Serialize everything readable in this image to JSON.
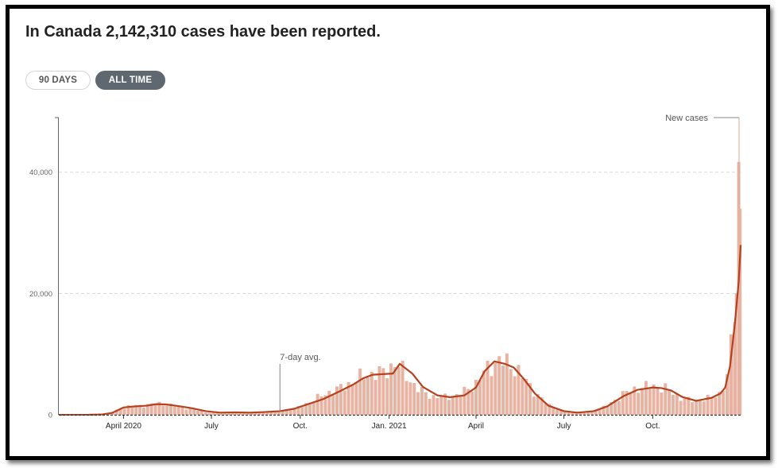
{
  "header": {
    "title": "In Canada 2,142,310 cases have been reported."
  },
  "toggles": {
    "days90_label": "90 DAYS",
    "alltime_label": "ALL TIME",
    "selected": "ALL TIME"
  },
  "colors": {
    "bars": "#e8b3a2",
    "avg_line": "#b5411d",
    "axis": "#666666",
    "grid": "#d8d8d8"
  },
  "chart_data": {
    "type": "bar",
    "title": "In Canada 2,142,310 cases have been reported.",
    "xlabel": "",
    "ylabel": "",
    "ylim": [
      0,
      49000
    ],
    "yticks": [
      0,
      20000,
      40000
    ],
    "ytick_labels": [
      "0",
      "20,000",
      "40,000"
    ],
    "xticks": [
      "2020-04-01",
      "2020-07-01",
      "2020-10-01",
      "2021-01-01",
      "2021-04-01",
      "2021-07-01",
      "2021-10-01"
    ],
    "xtick_labels": [
      "April 2020",
      "July",
      "Oct.",
      "Jan. 2021",
      "April",
      "July",
      "Oct."
    ],
    "x_range": [
      "2020-01-25",
      "2021-12-31"
    ],
    "grid": true,
    "bar_sample_days": 4,
    "series": [
      {
        "name": "New cases",
        "kind": "bars",
        "x": [
          "2020-03-01",
          "2020-03-15",
          "2020-03-25",
          "2020-04-05",
          "2020-04-20",
          "2020-05-01",
          "2020-05-10",
          "2020-05-20",
          "2020-06-05",
          "2020-06-20",
          "2020-07-01",
          "2020-07-15",
          "2020-08-01",
          "2020-08-15",
          "2020-09-01",
          "2020-09-15",
          "2020-10-01",
          "2020-10-15",
          "2020-11-01",
          "2020-11-15",
          "2020-12-01",
          "2020-12-15",
          "2020-12-28",
          "2021-01-08",
          "2021-01-20",
          "2021-02-01",
          "2021-02-15",
          "2021-03-01",
          "2021-03-15",
          "2021-04-01",
          "2021-04-12",
          "2021-04-25",
          "2021-05-05",
          "2021-05-15",
          "2021-06-01",
          "2021-06-15",
          "2021-07-01",
          "2021-07-15",
          "2021-08-01",
          "2021-08-15",
          "2021-09-01",
          "2021-09-15",
          "2021-10-01",
          "2021-10-15",
          "2021-11-01",
          "2021-11-15",
          "2021-12-01",
          "2021-12-10",
          "2021-12-18",
          "2021-12-22",
          "2021-12-26",
          "2021-12-29",
          "2021-12-31"
        ],
        "values": [
          0,
          200,
          700,
          1400,
          1500,
          1800,
          1800,
          1600,
          1100,
          600,
          300,
          400,
          400,
          300,
          500,
          700,
          1300,
          2500,
          3800,
          4600,
          6100,
          6800,
          7000,
          8700,
          6200,
          4100,
          3000,
          2900,
          3300,
          5200,
          7600,
          9000,
          8400,
          7200,
          3700,
          1600,
          500,
          350,
          600,
          1500,
          3500,
          4400,
          4800,
          4300,
          2600,
          2300,
          2800,
          3600,
          6500,
          13000,
          20000,
          40000,
          34000
        ]
      },
      {
        "name": "7-day avg.",
        "kind": "line",
        "x": [
          "2020-02-25",
          "2020-03-10",
          "2020-03-20",
          "2020-04-01",
          "2020-04-10",
          "2020-04-25",
          "2020-05-05",
          "2020-05-15",
          "2020-05-25",
          "2020-06-10",
          "2020-06-25",
          "2020-07-10",
          "2020-07-25",
          "2020-08-10",
          "2020-08-25",
          "2020-09-10",
          "2020-09-25",
          "2020-10-10",
          "2020-10-25",
          "2020-11-10",
          "2020-11-25",
          "2020-12-05",
          "2020-12-15",
          "2020-12-25",
          "2021-01-05",
          "2021-01-12",
          "2021-01-25",
          "2021-02-05",
          "2021-02-20",
          "2021-03-05",
          "2021-03-20",
          "2021-04-01",
          "2021-04-10",
          "2021-04-20",
          "2021-05-01",
          "2021-05-10",
          "2021-05-20",
          "2021-06-01",
          "2021-06-15",
          "2021-07-01",
          "2021-07-15",
          "2021-08-01",
          "2021-08-15",
          "2021-09-01",
          "2021-09-15",
          "2021-10-01",
          "2021-10-10",
          "2021-10-20",
          "2021-11-01",
          "2021-11-15",
          "2021-12-01",
          "2021-12-10",
          "2021-12-15",
          "2021-12-20",
          "2021-12-25",
          "2021-12-29",
          "2021-12-31"
        ],
        "values": [
          0,
          60,
          300,
          1200,
          1350,
          1500,
          1750,
          1700,
          1500,
          1100,
          600,
          350,
          400,
          350,
          450,
          600,
          1000,
          1800,
          2600,
          3800,
          5000,
          6000,
          6600,
          6700,
          6800,
          8400,
          6800,
          4600,
          3200,
          2900,
          3200,
          4500,
          7200,
          8800,
          8400,
          7800,
          6000,
          3500,
          1500,
          600,
          350,
          600,
          1400,
          3100,
          4100,
          4500,
          4400,
          4000,
          2900,
          2300,
          2800,
          3500,
          4500,
          8000,
          15000,
          22000,
          28000
        ]
      }
    ],
    "annotations": [
      {
        "text": "New cases",
        "x": "2021-12-31"
      },
      {
        "text": "7-day avg.",
        "x": "2020-09-10"
      }
    ]
  }
}
